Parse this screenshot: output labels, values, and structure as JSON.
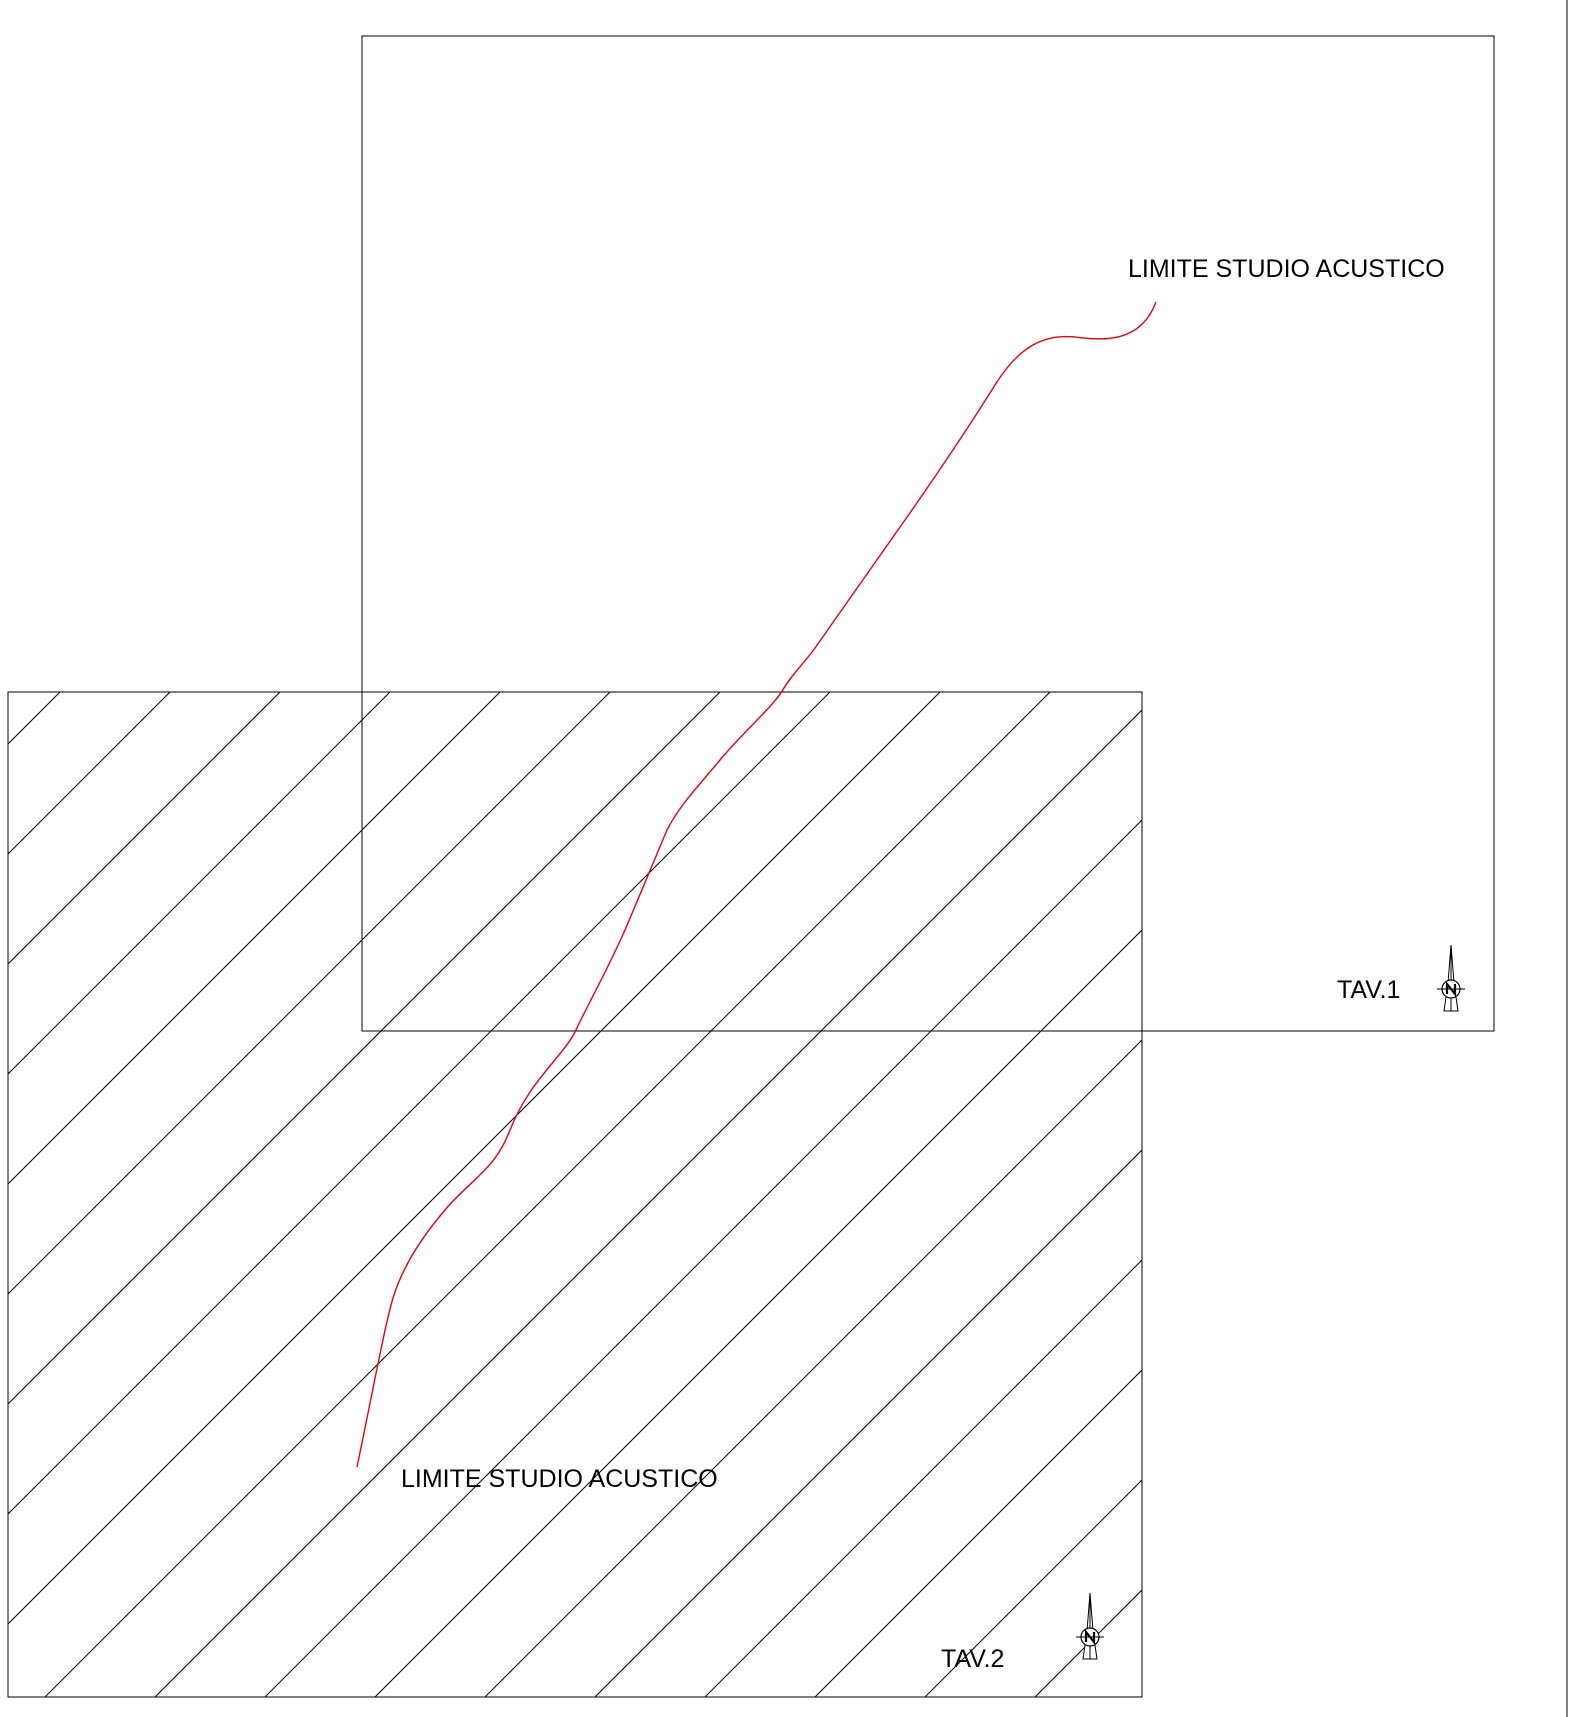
{
  "sheets": [
    {
      "id": "tav1",
      "label": "TAV.1",
      "hatched": false
    },
    {
      "id": "tav2",
      "label": "TAV.2",
      "hatched": true
    }
  ],
  "annotations": {
    "boundary_label_top": "LIMITE STUDIO ACUSTICO",
    "boundary_label_bottom": "LIMITE STUDIO ACUSTICO"
  },
  "north_arrow": {
    "letter": "N"
  },
  "colors": {
    "line": "#000000",
    "boundary": "#e8000b",
    "background": "#ffffff"
  }
}
